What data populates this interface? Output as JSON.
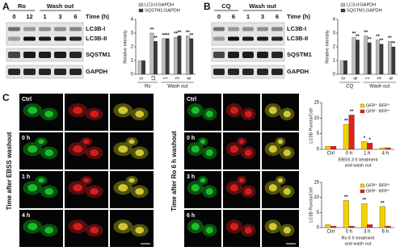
{
  "panel_labels": [
    "A",
    "B",
    "C"
  ],
  "blots": [
    {
      "header_groups": [
        {
          "label": "Ro",
          "lanes": [
            "0",
            "12"
          ]
        },
        {
          "label": "Wash out",
          "lanes": [
            "1",
            "3",
            "6"
          ]
        }
      ],
      "time_label": "Time (h)",
      "rows": [
        "LC3B-I",
        "LC3B-II",
        "SQSTM1",
        "GAPDH"
      ]
    },
    {
      "header_groups": [
        {
          "label": "CQ",
          "lanes": [
            "0",
            "6"
          ]
        },
        {
          "label": "Wash out",
          "lanes": [
            "1",
            "3",
            "6"
          ]
        }
      ],
      "time_label": "Time (h)",
      "rows": [
        "LC3B-I",
        "LC3B-II",
        "SQSTM1",
        "GAPDH"
      ]
    }
  ],
  "micrographs": [
    {
      "side_label": "Time after EBSS washout",
      "rows": [
        "Ctrl",
        "0 h",
        "1 h",
        "4 h"
      ]
    },
    {
      "side_label": "Time after Ro 6 h washout",
      "rows": [
        "Ctrl",
        "0 h",
        "3 h",
        "6 h"
      ]
    }
  ],
  "chart_data": [
    {
      "type": "bar",
      "y_label": "Relative intensity",
      "category_groups": [
        {
          "label": "Ro",
          "categories": [
            "0",
            "12"
          ]
        },
        {
          "label": "Wash out",
          "categories": [
            "1",
            "3",
            "6"
          ]
        }
      ],
      "series": [
        {
          "name": "LC3-II:GAPDH",
          "color": "#bdbdbd",
          "values": [
            1,
            3,
            2.6,
            2.7,
            2.8
          ],
          "significance": [
            null,
            "**",
            "**",
            "**",
            "**"
          ]
        },
        {
          "name": "SQSTM1:GAPDH",
          "color": "#3a3a3a",
          "values": [
            1,
            2.4,
            2.6,
            2.8,
            2.6
          ],
          "significance": [
            null,
            "**",
            "**",
            "**",
            "**"
          ]
        }
      ],
      "ylim": [
        0,
        4
      ],
      "yticks": [
        0,
        1,
        2,
        3,
        4
      ]
    },
    {
      "type": "bar",
      "y_label": "Relative intensity",
      "category_groups": [
        {
          "label": "CQ",
          "categories": [
            "0",
            "6"
          ]
        },
        {
          "label": "Wash out",
          "categories": [
            "1",
            "3",
            "6"
          ]
        }
      ],
      "series": [
        {
          "name": "LC3-II:GAPDH",
          "color": "#bdbdbd",
          "values": [
            1,
            2.7,
            2.8,
            2.5,
            2.4
          ],
          "significance": [
            null,
            "**",
            "**",
            "**",
            "**"
          ]
        },
        {
          "name": "SQSTM1:GAPDH",
          "color": "#3a3a3a",
          "values": [
            1,
            2.5,
            2.3,
            2.2,
            2.0
          ],
          "significance": [
            null,
            "**",
            "**",
            "**",
            "**"
          ]
        }
      ],
      "ylim": [
        0,
        4
      ],
      "yticks": [
        0,
        1,
        2,
        3,
        4
      ]
    },
    {
      "type": "bar",
      "y_label": "LC3B Puncta/Cell",
      "x_label": [
        "EBSS 3 h treatment",
        "and wash out"
      ],
      "categories": [
        "Ctrl",
        "0 h",
        "1 h",
        "4 h"
      ],
      "series": [
        {
          "name": "GFP⁺ RFP⁺",
          "color": "#f2d200",
          "values": [
            1,
            8,
            2.5,
            0.5
          ],
          "significance": [
            null,
            "**",
            "*",
            null
          ]
        },
        {
          "name": "GFP⁻ RFP⁺",
          "color": "#e02020",
          "values": [
            1,
            11,
            2,
            0.5
          ],
          "significance": [
            null,
            "**",
            "*",
            null
          ]
        }
      ],
      "ylim": [
        0,
        15
      ],
      "yticks": [
        0,
        5,
        10,
        15
      ]
    },
    {
      "type": "bar",
      "y_label": "LC3B Puncta/Cell",
      "x_label": [
        "Ro 6 h treatment",
        "and wash out"
      ],
      "categories": [
        "Ctrl",
        "0 h",
        "3 h",
        "6 h"
      ],
      "series": [
        {
          "name": "GFP⁺ RFP⁺",
          "color": "#f2d200",
          "values": [
            1,
            9,
            8,
            7
          ],
          "significance": [
            null,
            "**",
            "**",
            "**"
          ]
        },
        {
          "name": "GFP⁻ RFP⁺",
          "color": "#e02020",
          "values": [
            0.5,
            0.5,
            1,
            0.5
          ],
          "significance": [
            null,
            null,
            null,
            null
          ]
        }
      ],
      "ylim": [
        0,
        15
      ],
      "yticks": [
        0,
        5,
        10,
        15
      ]
    }
  ]
}
